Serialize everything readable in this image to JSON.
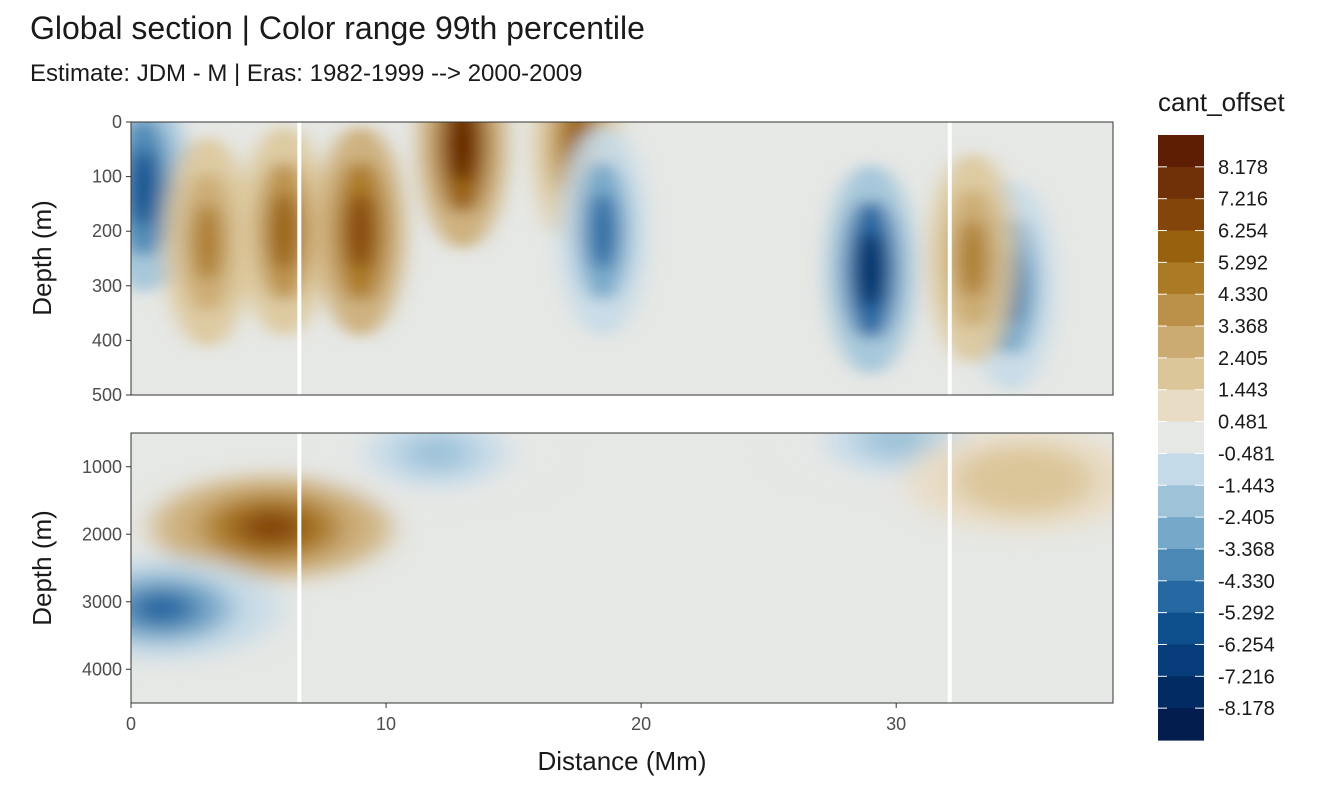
{
  "title": "Global section | Color range 99th percentile",
  "subtitle": "Estimate: JDM - M | Eras: 1982-1999 --> 2000-2009",
  "chart_data": {
    "type": "heatmap",
    "title": "Global section | Color range 99th percentile",
    "subtitle": "Estimate: JDM - M | Eras: 1982-1999 --> 2000-2009",
    "xlabel": "Distance (Mm)",
    "ylabel": "Depth (m)",
    "xlim": [
      0,
      38.5
    ],
    "x_ticks": [
      0,
      10,
      20,
      30
    ],
    "gaps_x": [
      6.6,
      32.1
    ],
    "grid": false,
    "legend_position": "right",
    "legend": {
      "title": "cant_offset",
      "labels": [
        "8.178",
        "7.216",
        "6.254",
        "5.292",
        "4.330",
        "3.368",
        "2.405",
        "1.443",
        "0.481",
        "-0.481",
        "-1.443",
        "-2.405",
        "-3.368",
        "-4.330",
        "-5.292",
        "-6.254",
        "-7.216",
        "-8.178"
      ],
      "colors": [
        "#5e1e04",
        "#703008",
        "#84450b",
        "#98610d",
        "#ab7a25",
        "#bb9149",
        "#cbab72",
        "#dbc69a",
        "#e9dcc4",
        "#e6e8e5",
        "#c5dae8",
        "#9ec3d9",
        "#76a8c9",
        "#4b88b5",
        "#2668a1",
        "#0e508e",
        "#063c79",
        "#032b63",
        "#021d4e"
      ]
    },
    "panels": [
      {
        "name": "upper",
        "ylim": [
          0,
          500
        ],
        "y_ticks": [
          0,
          100,
          200,
          300,
          400,
          500
        ],
        "ylabel": "Depth (m)",
        "features": [
          {
            "x": 0.5,
            "depth": 120,
            "value": -6
          },
          {
            "x": 3.0,
            "depth": 220,
            "value": 4
          },
          {
            "x": 6.0,
            "depth": 200,
            "value": 5
          },
          {
            "x": 9.0,
            "depth": 200,
            "value": 6
          },
          {
            "x": 13.0,
            "depth": 40,
            "value": 8
          },
          {
            "x": 17.5,
            "depth": 40,
            "value": 5
          },
          {
            "x": 18.5,
            "depth": 200,
            "value": -5
          },
          {
            "x": 29.0,
            "depth": 270,
            "value": -8
          },
          {
            "x": 34.5,
            "depth": 300,
            "value": -5
          },
          {
            "x": 33.0,
            "depth": 250,
            "value": 4
          }
        ]
      },
      {
        "name": "lower",
        "ylim": [
          500,
          4500
        ],
        "y_ticks": [
          1000,
          2000,
          3000,
          4000
        ],
        "ylabel": "Depth (m)",
        "features": [
          {
            "x": 5.5,
            "depth": 1900,
            "value": 6
          },
          {
            "x": 1.2,
            "depth": 3100,
            "value": -5
          },
          {
            "x": 12.0,
            "depth": 800,
            "value": -2
          },
          {
            "x": 30.0,
            "depth": 600,
            "value": -2
          },
          {
            "x": 35.0,
            "depth": 1200,
            "value": 1.5
          }
        ]
      }
    ]
  }
}
